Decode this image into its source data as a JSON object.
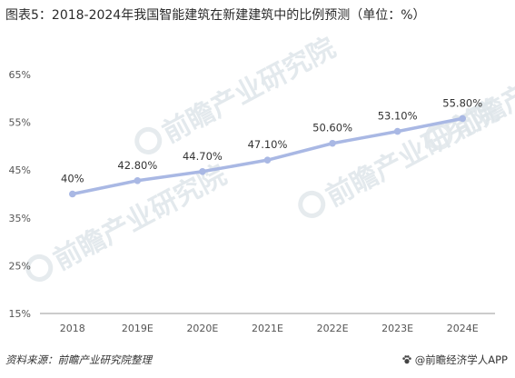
{
  "title": "图表5：2018-2024年我国智能建筑在新建建筑中的比例预测（单位：%）",
  "watermark": "前瞻产业研究院",
  "source": "资料来源：前瞻产业研究院整理",
  "credit": "@前瞻经济学人APP",
  "colors": {
    "line": "#a9b8e4",
    "marker": "#a9b8e4",
    "axis": "#9a9a9a",
    "text": "#333333",
    "tick": "#555555"
  },
  "chart_data": {
    "type": "line",
    "categories": [
      "2018",
      "2019E",
      "2020E",
      "2021E",
      "2022E",
      "2023E",
      "2024E"
    ],
    "series": [
      {
        "values": [
          40,
          42.8,
          44.7,
          47.1,
          50.6,
          53.1,
          55.8
        ],
        "data_labels": [
          "40%",
          "42.80%",
          "44.70%",
          "47.10%",
          "50.60%",
          "53.10%",
          "55.80%"
        ]
      }
    ],
    "ylim": [
      15,
      65
    ],
    "yticks": [
      15,
      25,
      35,
      45,
      55,
      65
    ],
    "ytick_labels": [
      "15%",
      "25%",
      "35%",
      "45%",
      "55%",
      "65%"
    ],
    "grid": false,
    "legend": "none"
  }
}
